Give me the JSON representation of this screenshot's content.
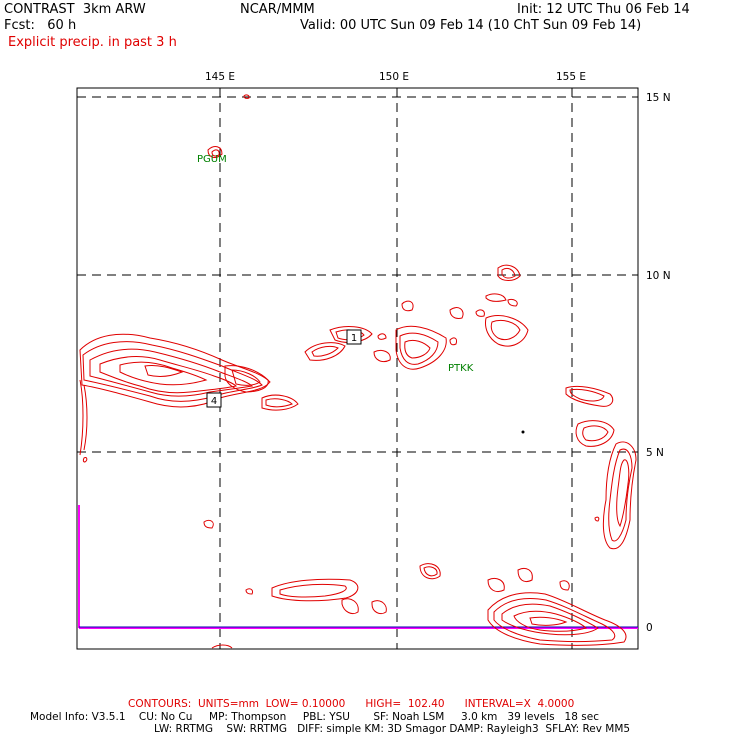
{
  "header": {
    "model": "CONTRAST  3km ARW",
    "org": "NCAR/MMM",
    "init": "Init: 12 UTC Thu 06 Feb 14",
    "fcst": "Fcst:   60 h",
    "valid": "Valid: 00 UTC Sun 09 Feb 14 (10 ChT Sun 09 Feb 14)",
    "field": "Explicit precip. in past 3 h"
  },
  "map": {
    "lon_labels": [
      "145 E",
      "150 E",
      "155 E"
    ],
    "lat_labels": [
      "15 N",
      "10 N",
      "5 N",
      "0"
    ],
    "stations": [
      "PGUM",
      "PTKK"
    ],
    "max_markers": [
      "1",
      "4"
    ],
    "colors": {
      "contour": "#e00000",
      "grid": "#000000",
      "station": "#008000",
      "border": "#ff00ff"
    }
  },
  "footer": {
    "contours": "CONTOURS:  UNITS=mm  LOW= 0.10000      HIGH=  102.40      INTERVAL=X  4.0000",
    "model_info_1": "Model Info: V3.5.1    CU: No Cu     MP: Thompson     PBL: YSU       SF: Noah LSM     3.0 km   39 levels   18 sec",
    "model_info_2": "LW: RRTMG    SW: RRTMG   DIFF: simple KM: 3D Smagor DAMP: Rayleigh3  SFLAY: Rev MM5"
  }
}
